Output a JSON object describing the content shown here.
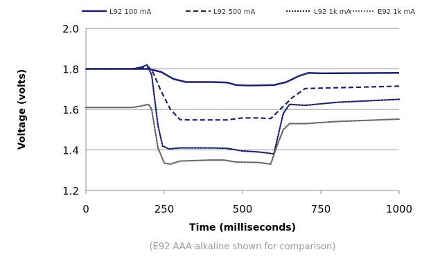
{
  "chart_data": {
    "type": "line",
    "title": "",
    "xlabel": "Time (milliseconds)",
    "ylabel": "Voltage (volts)",
    "xlim": [
      0,
      1000
    ],
    "ylim": [
      1.2,
      2.0
    ],
    "x_ticks": [
      "0",
      "250",
      "500",
      "750",
      "1000"
    ],
    "y_ticks": [
      "1.2",
      "1.4",
      "1.6",
      "1.8",
      "2.0"
    ],
    "grid": "horizontal",
    "legend_position": "top",
    "series": [
      {
        "name": "L92 100 mA",
        "color": "#1a1f7a",
        "dash": "solid",
        "points": [
          [
            0,
            1.8
          ],
          [
            150,
            1.8
          ],
          [
            200,
            1.8
          ],
          [
            240,
            1.785
          ],
          [
            280,
            1.75
          ],
          [
            320,
            1.735
          ],
          [
            400,
            1.735
          ],
          [
            450,
            1.733
          ],
          [
            480,
            1.72
          ],
          [
            520,
            1.718
          ],
          [
            600,
            1.72
          ],
          [
            640,
            1.735
          ],
          [
            680,
            1.765
          ],
          [
            710,
            1.78
          ],
          [
            750,
            1.778
          ],
          [
            1000,
            1.78
          ]
        ]
      },
      {
        "name": "L92 500 mA",
        "color": "#1a1f7a",
        "dash": "dashed",
        "points": [
          [
            0,
            1.8
          ],
          [
            150,
            1.8
          ],
          [
            185,
            1.808
          ],
          [
            200,
            1.81
          ],
          [
            215,
            1.78
          ],
          [
            240,
            1.69
          ],
          [
            270,
            1.6
          ],
          [
            300,
            1.55
          ],
          [
            330,
            1.548
          ],
          [
            400,
            1.548
          ],
          [
            450,
            1.548
          ],
          [
            500,
            1.558
          ],
          [
            550,
            1.558
          ],
          [
            590,
            1.555
          ],
          [
            620,
            1.6
          ],
          [
            660,
            1.66
          ],
          [
            700,
            1.703
          ],
          [
            750,
            1.705
          ],
          [
            1000,
            1.715
          ]
        ]
      },
      {
        "name": "L92 1k mA",
        "color": "#1a1f7a",
        "dash": "dotted",
        "points": [
          [
            0,
            1.8
          ],
          [
            150,
            1.8
          ],
          [
            180,
            1.81
          ],
          [
            195,
            1.82
          ],
          [
            210,
            1.77
          ],
          [
            230,
            1.52
          ],
          [
            245,
            1.42
          ],
          [
            265,
            1.405
          ],
          [
            300,
            1.41
          ],
          [
            400,
            1.41
          ],
          [
            450,
            1.408
          ],
          [
            500,
            1.395
          ],
          [
            550,
            1.39
          ],
          [
            580,
            1.385
          ],
          [
            600,
            1.38
          ],
          [
            615,
            1.48
          ],
          [
            630,
            1.58
          ],
          [
            650,
            1.625
          ],
          [
            700,
            1.62
          ],
          [
            800,
            1.635
          ],
          [
            1000,
            1.65
          ]
        ]
      },
      {
        "name": "E92 1k mA",
        "color": "#666666",
        "dash": "dotted",
        "points": [
          [
            0,
            1.61
          ],
          [
            150,
            1.61
          ],
          [
            180,
            1.618
          ],
          [
            200,
            1.625
          ],
          [
            210,
            1.6
          ],
          [
            230,
            1.41
          ],
          [
            250,
            1.335
          ],
          [
            270,
            1.33
          ],
          [
            300,
            1.345
          ],
          [
            400,
            1.35
          ],
          [
            440,
            1.35
          ],
          [
            480,
            1.34
          ],
          [
            550,
            1.338
          ],
          [
            590,
            1.33
          ],
          [
            610,
            1.42
          ],
          [
            630,
            1.5
          ],
          [
            650,
            1.53
          ],
          [
            700,
            1.53
          ],
          [
            800,
            1.54
          ],
          [
            1000,
            1.552
          ]
        ]
      }
    ]
  },
  "caption": "(E92 AAA alkaline shown for comparison)"
}
